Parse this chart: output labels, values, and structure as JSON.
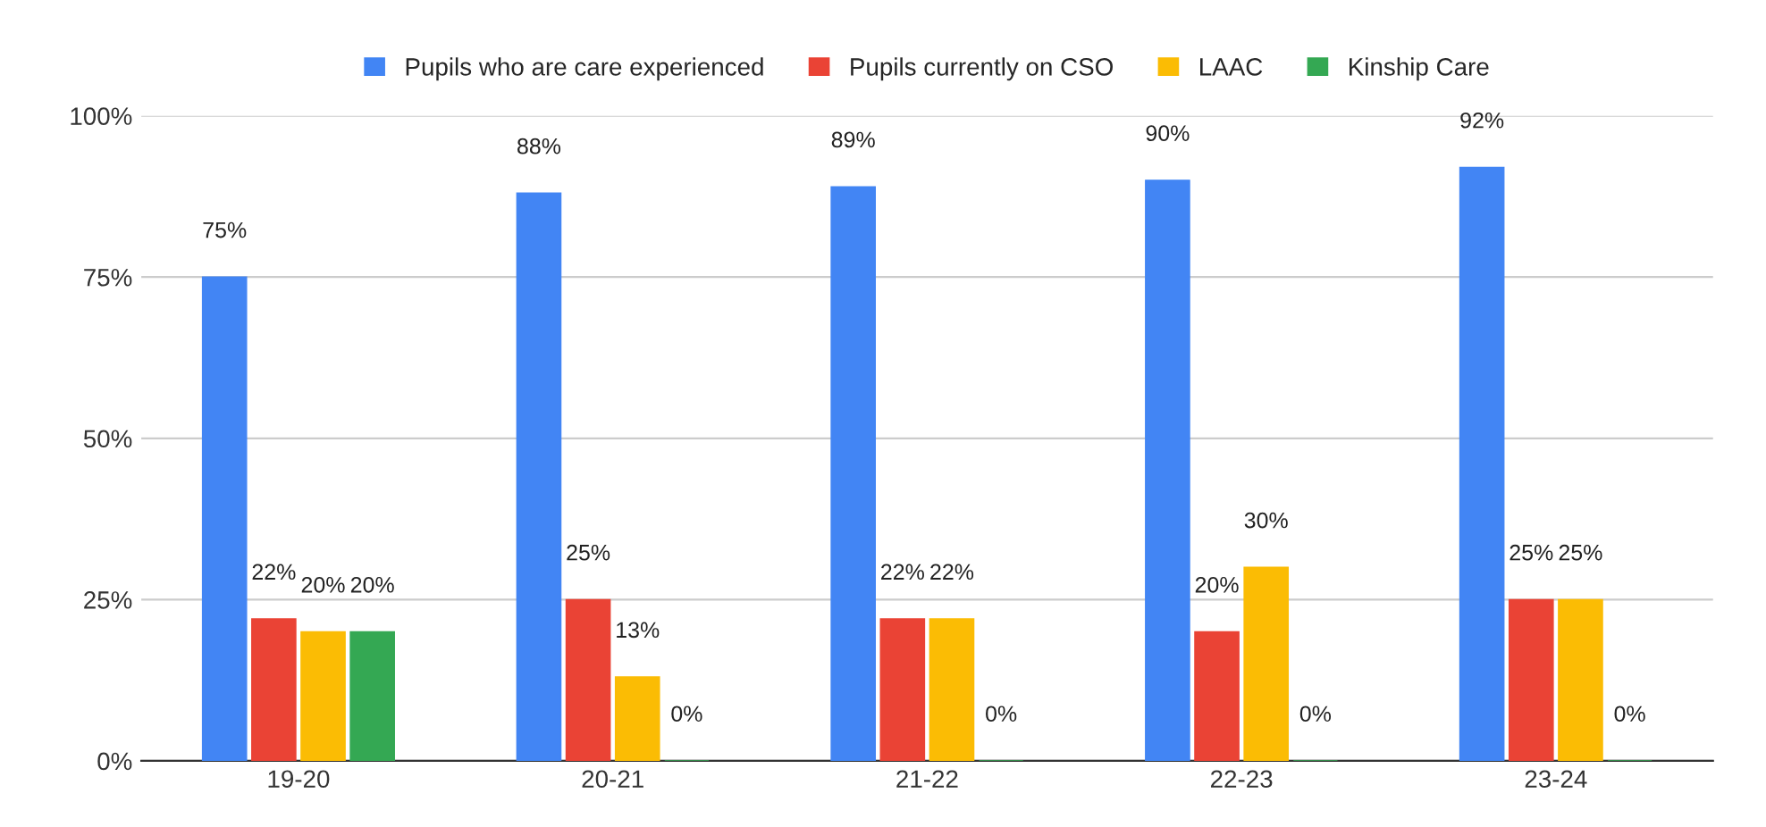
{
  "chart_data": {
    "type": "bar",
    "categories": [
      "19-20",
      "20-21",
      "21-22",
      "22-23",
      "23-24"
    ],
    "series": [
      {
        "name": "Pupils who are care experienced",
        "color": "#4285f4",
        "values": [
          75,
          88,
          89,
          90,
          92
        ],
        "value_labels": [
          "75%",
          "88%",
          "89%",
          "90%",
          "92%"
        ]
      },
      {
        "name": "Pupils currently on CSO",
        "color": "#ea4335",
        "values": [
          22,
          25,
          22,
          20,
          25
        ],
        "value_labels": [
          "22%",
          "25%",
          "22%",
          "20%",
          "25%"
        ]
      },
      {
        "name": "LAAC",
        "color": "#fbbc04",
        "values": [
          20,
          13,
          22,
          30,
          25
        ],
        "value_labels": [
          "20%",
          "13%",
          "22%",
          "30%",
          "25%"
        ]
      },
      {
        "name": "Kinship Care",
        "color": "#34a853",
        "values": [
          20,
          0,
          0,
          0,
          0
        ],
        "value_labels": [
          "20%",
          "0%",
          "0%",
          "0%",
          "0%"
        ]
      }
    ],
    "ylim": [
      0,
      100
    ],
    "yticks": [
      {
        "value": 0,
        "label": "0%"
      },
      {
        "value": 25,
        "label": "25%"
      },
      {
        "value": 50,
        "label": "50%"
      },
      {
        "value": 75,
        "label": "75%"
      },
      {
        "value": 100,
        "label": "100%"
      }
    ],
    "grid": "y",
    "legend": "top"
  }
}
